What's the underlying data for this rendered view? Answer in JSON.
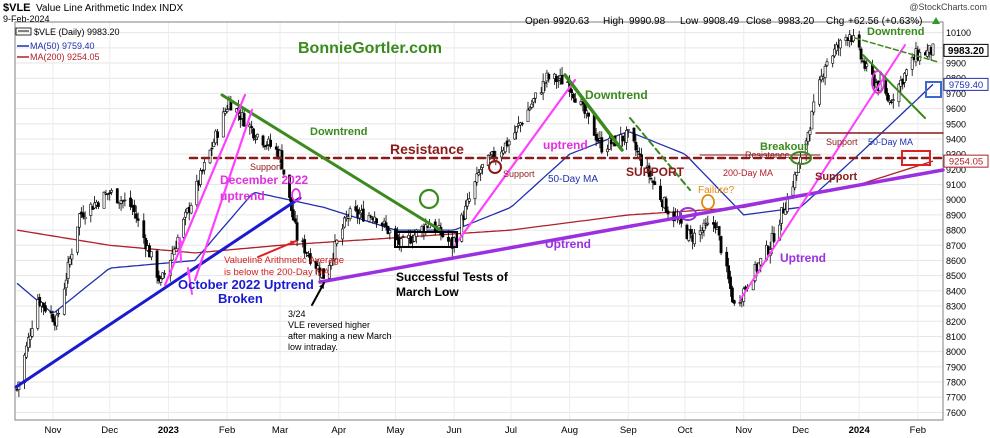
{
  "header": {
    "ticker": "$VLE",
    "index_name": "Value Line Arithmetic Index  INDX",
    "date": "9-Feb-2024",
    "watermark": "@StockCharts.com",
    "open_label": "Open",
    "open": "9920.63",
    "high_label": "High",
    "high": "9990.98",
    "low_label": "Low",
    "low": "9908.49",
    "close_label": "Close",
    "close": "9983.20",
    "chg_label": "Chg",
    "chg": "+62.56 (+0.63%)",
    "up_icon": "up-triangle-icon"
  },
  "legend": [
    {
      "label": "$VLE (Daily) 9983.20",
      "color": "#000000"
    },
    {
      "label": "MA(50) 9759.40",
      "color": "#1f2fb0"
    },
    {
      "label": "MA(200) 9254.05",
      "color": "#b0202a"
    }
  ],
  "chart_data": {
    "type": "candlestick",
    "x_tick_labels": [
      "Nov",
      "Dec",
      "2023",
      "Feb",
      "Mar",
      "Apr",
      "May",
      "Jun",
      "Jul",
      "Aug",
      "Sep",
      "Oct",
      "Nov",
      "Dec",
      "2024",
      "Feb"
    ],
    "y_tick_labels": [
      7600,
      7700,
      7800,
      7900,
      8000,
      8100,
      8200,
      8300,
      8400,
      8500,
      8600,
      8700,
      8800,
      8900,
      9000,
      9100,
      9200,
      9300,
      9400,
      9500,
      9600,
      9700,
      9800,
      9900,
      10000,
      10100
    ],
    "ylim": [
      7550,
      10170
    ],
    "grid": true,
    "price_keypoints": [
      [
        "2022-10-13",
        7750
      ],
      [
        "2022-10-24",
        8350
      ],
      [
        "2022-11-03",
        8200
      ],
      [
        "2022-11-15",
        8900
      ],
      [
        "2022-12-01",
        9050
      ],
      [
        "2022-12-13",
        8950
      ],
      [
        "2022-12-28",
        8450
      ],
      [
        "2023-01-12",
        8950
      ],
      [
        "2023-02-02",
        9650
      ],
      [
        "2023-02-15",
        9450
      ],
      [
        "2023-03-01",
        9300
      ],
      [
        "2023-03-10",
        8750
      ],
      [
        "2023-03-24",
        8500
      ],
      [
        "2023-04-06",
        8900
      ],
      [
        "2023-04-20",
        8900
      ],
      [
        "2023-05-04",
        8700
      ],
      [
        "2023-05-19",
        8850
      ],
      [
        "2023-05-31",
        8700
      ],
      [
        "2023-06-15",
        9200
      ],
      [
        "2023-07-01",
        9400
      ],
      [
        "2023-07-20",
        9800
      ],
      [
        "2023-07-31",
        9780
      ],
      [
        "2023-08-18",
        9350
      ],
      [
        "2023-09-01",
        9420
      ],
      [
        "2023-09-21",
        8950
      ],
      [
        "2023-10-04",
        8750
      ],
      [
        "2023-10-17",
        8850
      ],
      [
        "2023-10-27",
        8300
      ],
      [
        "2023-11-15",
        8700
      ],
      [
        "2023-12-01",
        9250
      ],
      [
        "2023-12-14",
        9900
      ],
      [
        "2023-12-27",
        10100
      ],
      [
        "2024-01-05",
        9850
      ],
      [
        "2024-01-17",
        9650
      ],
      [
        "2024-01-31",
        9950
      ],
      [
        "2024-02-09",
        9983.2
      ]
    ],
    "ma50_keypoints": [
      [
        "2022-10-13",
        8450
      ],
      [
        "2022-11-01",
        8250
      ],
      [
        "2022-12-01",
        8550
      ],
      [
        "2023-01-15",
        8600
      ],
      [
        "2023-02-15",
        9050
      ],
      [
        "2023-03-24",
        8950
      ],
      [
        "2023-05-01",
        8800
      ],
      [
        "2023-06-01",
        8800
      ],
      [
        "2023-07-01",
        8950
      ],
      [
        "2023-08-01",
        9300
      ],
      [
        "2023-09-01",
        9450
      ],
      [
        "2023-10-01",
        9300
      ],
      [
        "2023-11-01",
        8900
      ],
      [
        "2023-12-01",
        8950
      ],
      [
        "2024-01-01",
        9300
      ],
      [
        "2024-02-09",
        9759.4
      ]
    ],
    "ma200_keypoints": [
      [
        "2022-10-13",
        8800
      ],
      [
        "2022-12-01",
        8700
      ],
      [
        "2023-01-15",
        8650
      ],
      [
        "2023-03-01",
        8700
      ],
      [
        "2023-05-01",
        8750
      ],
      [
        "2023-07-01",
        8800
      ],
      [
        "2023-09-01",
        8900
      ],
      [
        "2023-11-01",
        8950
      ],
      [
        "2024-01-01",
        9100
      ],
      [
        "2024-02-09",
        9254.05
      ]
    ],
    "last_price": "9983.20",
    "last_ma50": "9759.40",
    "last_ma200": "9254.05",
    "annotations": [
      {
        "id": "site",
        "text": "BonnieGortler.com",
        "color": "#3a8a1e"
      },
      {
        "id": "downtrend1",
        "text": "Downtrend",
        "color": "#3a8a1e"
      },
      {
        "id": "resistance",
        "text": "Resistance",
        "color": "#8b1a1a"
      },
      {
        "id": "support1",
        "text": "Support",
        "color": "#8b1a1a"
      },
      {
        "id": "december",
        "text": "December 2022",
        "color": "#e030e0"
      },
      {
        "id": "uptrend_dec",
        "text": "uptrend",
        "color": "#e030e0"
      },
      {
        "id": "va1",
        "text": "Valueline Arithmetic Average",
        "color": "#d02020"
      },
      {
        "id": "va2",
        "text": "is below the 200-Day MA",
        "color": "#d02020"
      },
      {
        "id": "oct1",
        "text": "October 2022 Uptrend",
        "color": "#1a1ad0"
      },
      {
        "id": "oct2",
        "text": "Broken",
        "color": "#1a1ad0"
      },
      {
        "id": "st1",
        "text": "Successful Tests of",
        "color": "#000000"
      },
      {
        "id": "st2",
        "text": "March Low",
        "color": "#000000"
      },
      {
        "id": "n1",
        "text": "3/24",
        "color": "#000000"
      },
      {
        "id": "n2",
        "text": "VLE reversed higher",
        "color": "#000000"
      },
      {
        "id": "n3",
        "text": "after making a new March",
        "color": "#000000"
      },
      {
        "id": "n4",
        "text": "low intraday.",
        "color": "#000000"
      },
      {
        "id": "support2",
        "text": "Support",
        "color": "#8b1a1a"
      },
      {
        "id": "ma50a",
        "text": "50-Day MA",
        "color": "#1f2fb0"
      },
      {
        "id": "uptrend_jul",
        "text": "uptrend",
        "color": "#e030e0"
      },
      {
        "id": "downtrend2",
        "text": "Downtrend",
        "color": "#3a8a1e"
      },
      {
        "id": "support_caps",
        "text": "SUPPORT",
        "color": "#8b1a1a"
      },
      {
        "id": "failure",
        "text": "Failure?",
        "color": "#e08a10"
      },
      {
        "id": "ma200a",
        "text": "200-Day MA",
        "color": "#b0202a"
      },
      {
        "id": "uptrend_main",
        "text": "Uptrend",
        "color": "#9b30e0"
      },
      {
        "id": "breakout",
        "text": "Breakout",
        "color": "#3a8a1e"
      },
      {
        "id": "resistance2",
        "text": "Resistance",
        "color": "#8b1a1a"
      },
      {
        "id": "support3",
        "text": "Support",
        "color": "#8b1a1a"
      },
      {
        "id": "support4",
        "text": "Support",
        "color": "#8b1a1a"
      },
      {
        "id": "ma50b",
        "text": "50-Day MA",
        "color": "#1f2fb0"
      },
      {
        "id": "uptrend_nov",
        "text": "Uptrend",
        "color": "#9b30e0"
      },
      {
        "id": "downtrend3",
        "text": "Downtrend",
        "color": "#3a8a1e"
      }
    ]
  }
}
